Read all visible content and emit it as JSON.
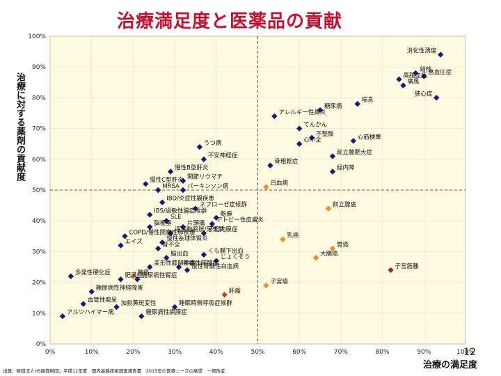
{
  "title": "治療満足度と医薬品の貢献",
  "ylabel": "治療に対する薬剤の貢献度",
  "xlabel": "治療の満足度",
  "source": "出典：財団法人HS振興財団；平成11年度　国内基盤技術調査報告書　2015年の医療ニーズの展望　一部改変",
  "page_number": "12",
  "colors": {
    "navy": "#1a1a7a",
    "orange": "#f28a1c",
    "red": "#e8341c",
    "brown": "#8b3a10"
  },
  "chart_data": {
    "type": "scatter",
    "title": "治療満足度と医薬品の貢献",
    "xlabel": "治療の満足度",
    "ylabel": "治療に対する薬剤の貢献度",
    "xlim": [
      0,
      100
    ],
    "ylim": [
      0,
      100
    ],
    "xticks": [
      "0%",
      "10%",
      "20%",
      "30%",
      "40%",
      "50%",
      "60%",
      "70%",
      "80%",
      "90%",
      "100%"
    ],
    "yticks": [
      "0%",
      "10%",
      "20%",
      "30%",
      "40%",
      "50%",
      "60%",
      "70%",
      "80%",
      "90%",
      "100%"
    ],
    "reference_lines": {
      "x": 50,
      "y": 50
    },
    "points": [
      {
        "label": "消化性潰瘍",
        "x": 94,
        "y": 94,
        "color": "navy"
      },
      {
        "label": "結核",
        "x": 88,
        "y": 88,
        "color": "navy"
      },
      {
        "label": "高脂血症",
        "x": 84,
        "y": 86,
        "color": "navy"
      },
      {
        "label": "高血圧症",
        "x": 90,
        "y": 87,
        "color": "navy"
      },
      {
        "label": "痛風",
        "x": 85,
        "y": 84,
        "color": "navy"
      },
      {
        "label": "狭心症",
        "x": 93,
        "y": 80,
        "color": "navy"
      },
      {
        "label": "喘息",
        "x": 74,
        "y": 78,
        "color": "navy"
      },
      {
        "label": "糖尿病",
        "x": 65,
        "y": 76,
        "color": "navy"
      },
      {
        "label": "アレルギー性鼻炎",
        "x": 54,
        "y": 74,
        "color": "navy"
      },
      {
        "label": "てんかん",
        "x": 60,
        "y": 70,
        "color": "navy"
      },
      {
        "label": "不整脈",
        "x": 63,
        "y": 67,
        "color": "navy"
      },
      {
        "label": "心不全",
        "x": 60,
        "y": 65,
        "color": "navy"
      },
      {
        "label": "心筋梗塞",
        "x": 73,
        "y": 66,
        "color": "navy"
      },
      {
        "label": "前立腺肥大症",
        "x": 68,
        "y": 61,
        "color": "navy"
      },
      {
        "label": "うつ病",
        "x": 36,
        "y": 64,
        "color": "navy"
      },
      {
        "label": "不安神経症",
        "x": 37,
        "y": 60,
        "color": "navy"
      },
      {
        "label": "骨粗鬆症",
        "x": 53,
        "y": 58,
        "color": "navy"
      },
      {
        "label": "緑内障",
        "x": 68,
        "y": 56,
        "color": "navy"
      },
      {
        "label": "慢性B型肝炎",
        "x": 29,
        "y": 56,
        "color": "navy"
      },
      {
        "label": "関節リウマチ",
        "x": 32,
        "y": 53,
        "color": "navy"
      },
      {
        "label": "慢性C型肝炎",
        "x": 23,
        "y": 52,
        "color": "navy"
      },
      {
        "label": "白血病",
        "x": 52,
        "y": 51,
        "color": "orange"
      },
      {
        "label": "MRSA",
        "x": 26,
        "y": 50,
        "color": "navy"
      },
      {
        "label": "パーキンソン病",
        "x": 32,
        "y": 50,
        "color": "navy"
      },
      {
        "label": "IBD/炎症性腸疾患",
        "x": 27,
        "y": 46,
        "color": "navy"
      },
      {
        "label": "ネフローゼ症候群",
        "x": 35,
        "y": 44,
        "color": "navy"
      },
      {
        "label": "前立腺癌",
        "x": 67,
        "y": 44,
        "color": "orange"
      },
      {
        "label": "IBS/過敏性腸症候群",
        "x": 24,
        "y": 42,
        "color": "navy"
      },
      {
        "label": "SLE",
        "x": 28,
        "y": 40,
        "color": "navy"
      },
      {
        "label": "乾癬",
        "x": 40,
        "y": 41,
        "color": "navy"
      },
      {
        "label": "アトピー性皮膚炎",
        "x": 39,
        "y": 39,
        "color": "navy"
      },
      {
        "label": "子宮内膜症",
        "x": 37,
        "y": 36,
        "color": "navy"
      },
      {
        "label": "片頭痛",
        "x": 32,
        "y": 38,
        "color": "navy"
      },
      {
        "label": "脳梗塞",
        "x": 24,
        "y": 38,
        "color": "navy"
      },
      {
        "label": "COPD/慢性閉塞性肺疾患",
        "x": 18,
        "y": 35,
        "color": "navy"
      },
      {
        "label": "過活動膀胱/尿失禁",
        "x": 29,
        "y": 36,
        "color": "navy"
      },
      {
        "label": "エイズ",
        "x": 17,
        "y": 32,
        "color": "navy"
      },
      {
        "label": "慢性糸球体腎炎",
        "x": 27,
        "y": 33,
        "color": "navy"
      },
      {
        "label": "乳癌",
        "x": 56,
        "y": 34,
        "color": "orange"
      },
      {
        "label": "胃癌",
        "x": 68,
        "y": 31,
        "color": "orange"
      },
      {
        "label": "大腸癌",
        "x": 64,
        "y": 28,
        "color": "orange"
      },
      {
        "label": "肺癌",
        "x": 20,
        "y": 22,
        "color": "orange"
      },
      {
        "label": "肝癌",
        "x": 42,
        "y": 16,
        "color": "red"
      },
      {
        "label": "子宮癌",
        "x": 52,
        "y": 19,
        "color": "orange"
      },
      {
        "label": "子宮筋腫",
        "x": 82,
        "y": 24,
        "color": "brown"
      },
      {
        "label": "腎不全",
        "x": 26,
        "y": 31,
        "color": "navy"
      },
      {
        "label": "くも膜下出血",
        "x": 37,
        "y": 29,
        "color": "navy"
      },
      {
        "label": "脳出血",
        "x": 28,
        "y": 28,
        "color": "navy"
      },
      {
        "label": "じょくそう",
        "x": 40,
        "y": 27,
        "color": "navy"
      },
      {
        "label": "疼痛性関節症",
        "x": 31,
        "y": 25,
        "color": "navy"
      },
      {
        "label": "変形性膝関節症",
        "x": 24,
        "y": 25,
        "color": "navy"
      },
      {
        "label": "慢性骨髄性白血病",
        "x": 33,
        "y": 24,
        "color": "navy"
      },
      {
        "label": "肥満症",
        "x": 17,
        "y": 21,
        "color": "navy"
      },
      {
        "label": "糖尿病性腎症",
        "x": 21,
        "y": 21,
        "color": "navy"
      },
      {
        "label": "多発性硬化症",
        "x": 5,
        "y": 22,
        "color": "navy"
      },
      {
        "label": "糖尿病性神経障害",
        "x": 10,
        "y": 17,
        "color": "navy"
      },
      {
        "label": "血管性痴呆",
        "x": 8,
        "y": 13,
        "color": "navy"
      },
      {
        "label": "加齢黄斑変性",
        "x": 16,
        "y": 12,
        "color": "navy"
      },
      {
        "label": "睡眠時無呼吸症候群",
        "x": 30,
        "y": 12,
        "color": "navy"
      },
      {
        "label": "糖尿病性網膜症",
        "x": 22,
        "y": 9,
        "color": "navy"
      },
      {
        "label": "アルツハイマー病",
        "x": 3,
        "y": 9,
        "color": "navy"
      }
    ]
  }
}
